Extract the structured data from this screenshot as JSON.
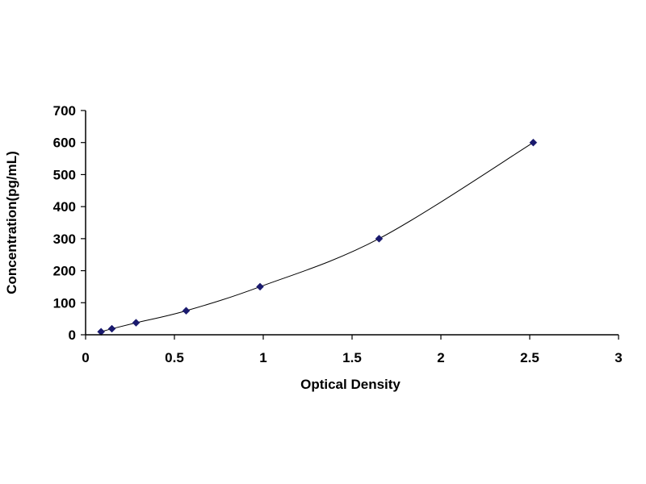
{
  "chart_data": {
    "type": "scatter",
    "title": "",
    "xlabel": "Optical Density",
    "ylabel": "Concentration(pg/mL)",
    "xlim": [
      0,
      3
    ],
    "ylim": [
      0,
      700
    ],
    "xticks": [
      "0",
      "0.5",
      "1",
      "1.5",
      "2",
      "2.5",
      "3"
    ],
    "yticks": [
      "0",
      "100",
      "200",
      "300",
      "400",
      "500",
      "600",
      "700"
    ],
    "grid": false,
    "legend": "none",
    "marker_color": "#1a1a6e",
    "line_color": "#000000",
    "trendline": "smooth curve through points",
    "series": [
      {
        "x": [
          0.087,
          0.148,
          0.284,
          0.566,
          0.982,
          1.652,
          2.52
        ],
        "y": [
          9.38,
          18.75,
          37.5,
          75,
          150,
          300,
          600
        ]
      }
    ]
  }
}
